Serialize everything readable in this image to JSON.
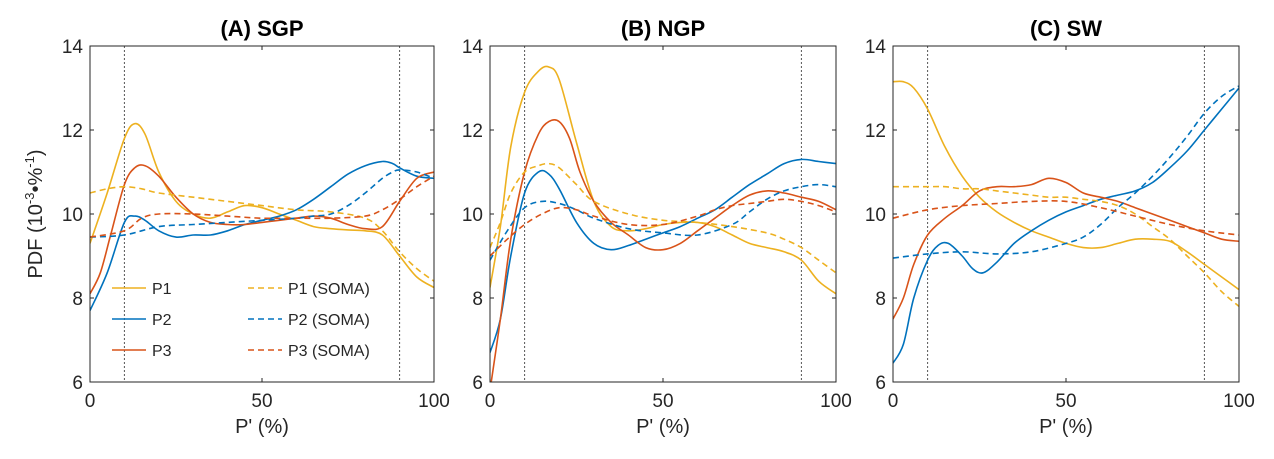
{
  "figure": {
    "ylabel_main": "PDF (10",
    "ylabel_exp1": "-3",
    "ylabel_mid": "•%",
    "ylabel_exp2": "-1",
    "ylabel_end": ")"
  },
  "colors": {
    "P1": "#EDB120",
    "P2": "#0072BD",
    "P3": "#D95319",
    "refline": "#555555"
  },
  "legend": [
    {
      "label": "P1",
      "series": "P1",
      "dashed": false
    },
    {
      "label": "P2",
      "series": "P2",
      "dashed": false
    },
    {
      "label": "P3",
      "series": "P3",
      "dashed": false
    },
    {
      "label": "P1 (SOMA)",
      "series": "P1",
      "dashed": true
    },
    {
      "label": "P2 (SOMA)",
      "series": "P2",
      "dashed": true
    },
    {
      "label": "P3 (SOMA)",
      "series": "P3",
      "dashed": true
    }
  ],
  "chart_data": [
    {
      "type": "line",
      "title": "(A) SGP",
      "xlabel": "P' (%)",
      "xlim": [
        0,
        100
      ],
      "ylim": [
        6,
        14
      ],
      "xticks": [
        0,
        50,
        100
      ],
      "yticks": [
        6,
        8,
        10,
        12,
        14
      ],
      "vlines": [
        10,
        90
      ],
      "series": [
        {
          "key": "P1",
          "dashed": false,
          "x": [
            0,
            5,
            10,
            13,
            16,
            20,
            25,
            30,
            35,
            40,
            45,
            50,
            55,
            60,
            65,
            70,
            75,
            80,
            85,
            90,
            95,
            100
          ],
          "y": [
            9.3,
            10.5,
            11.8,
            12.15,
            11.9,
            11.0,
            10.3,
            10.0,
            9.9,
            10.05,
            10.2,
            10.15,
            10.0,
            9.85,
            9.7,
            9.65,
            9.62,
            9.6,
            9.5,
            9.0,
            8.5,
            8.25
          ]
        },
        {
          "key": "P2",
          "dashed": false,
          "x": [
            0,
            5,
            10,
            13,
            16,
            20,
            25,
            30,
            35,
            40,
            45,
            50,
            55,
            60,
            65,
            70,
            75,
            80,
            85,
            88,
            90,
            95,
            100
          ],
          "y": [
            7.7,
            8.6,
            9.8,
            9.95,
            9.85,
            9.6,
            9.45,
            9.5,
            9.5,
            9.6,
            9.75,
            9.85,
            9.95,
            10.1,
            10.35,
            10.65,
            10.95,
            11.15,
            11.25,
            11.2,
            11.1,
            10.9,
            10.85
          ]
        },
        {
          "key": "P3",
          "dashed": false,
          "x": [
            0,
            3,
            6,
            10,
            13,
            16,
            20,
            25,
            30,
            35,
            40,
            45,
            50,
            55,
            60,
            65,
            70,
            75,
            80,
            85,
            90,
            95,
            100
          ],
          "y": [
            8.1,
            8.6,
            9.5,
            10.7,
            11.1,
            11.15,
            10.9,
            10.4,
            10.0,
            9.8,
            9.75,
            9.75,
            9.8,
            9.85,
            9.9,
            9.95,
            9.9,
            9.75,
            9.65,
            9.7,
            10.3,
            10.85,
            11.0
          ]
        },
        {
          "key": "P1",
          "dashed": true,
          "x": [
            0,
            5,
            10,
            15,
            20,
            30,
            40,
            50,
            60,
            70,
            80,
            85,
            90,
            95,
            100
          ],
          "y": [
            10.5,
            10.6,
            10.65,
            10.6,
            10.5,
            10.4,
            10.3,
            10.2,
            10.1,
            10.05,
            9.9,
            9.6,
            9.1,
            8.7,
            8.4
          ]
        },
        {
          "key": "P2",
          "dashed": true,
          "x": [
            0,
            10,
            20,
            30,
            40,
            50,
            60,
            65,
            70,
            75,
            80,
            85,
            88,
            90,
            95,
            100
          ],
          "y": [
            9.45,
            9.5,
            9.7,
            9.75,
            9.8,
            9.85,
            9.9,
            9.95,
            10.0,
            10.2,
            10.5,
            10.85,
            11.0,
            11.05,
            11.0,
            10.85
          ]
        },
        {
          "key": "P3",
          "dashed": true,
          "x": [
            0,
            10,
            15,
            20,
            30,
            40,
            50,
            60,
            70,
            80,
            85,
            90,
            95,
            100
          ],
          "y": [
            9.45,
            9.6,
            9.9,
            10.0,
            10.0,
            9.95,
            9.9,
            9.9,
            9.9,
            9.95,
            10.1,
            10.35,
            10.65,
            10.9
          ]
        }
      ]
    },
    {
      "type": "line",
      "title": "(B) NGP",
      "xlabel": "P' (%)",
      "xlim": [
        0,
        100
      ],
      "ylim": [
        6,
        14
      ],
      "xticks": [
        0,
        50,
        100
      ],
      "yticks": [
        6,
        8,
        10,
        12,
        14
      ],
      "vlines": [
        10,
        90
      ],
      "series": [
        {
          "key": "P1",
          "dashed": false,
          "x": [
            0,
            3,
            6,
            10,
            14,
            17,
            20,
            25,
            30,
            35,
            40,
            45,
            50,
            55,
            60,
            65,
            70,
            75,
            80,
            85,
            90,
            95,
            100
          ],
          "y": [
            8.25,
            9.7,
            11.6,
            12.9,
            13.4,
            13.5,
            13.2,
            11.7,
            10.3,
            9.7,
            9.6,
            9.65,
            9.75,
            9.8,
            9.8,
            9.7,
            9.5,
            9.3,
            9.2,
            9.1,
            8.9,
            8.4,
            8.1
          ]
        },
        {
          "key": "P2",
          "dashed": false,
          "x": [
            0,
            3,
            6,
            10,
            14,
            17,
            20,
            25,
            30,
            35,
            40,
            45,
            50,
            55,
            60,
            65,
            70,
            75,
            80,
            85,
            90,
            95,
            100
          ],
          "y": [
            6.7,
            7.5,
            9.0,
            10.5,
            11.0,
            10.95,
            10.6,
            9.8,
            9.3,
            9.15,
            9.25,
            9.4,
            9.55,
            9.7,
            9.9,
            10.1,
            10.4,
            10.7,
            10.95,
            11.2,
            11.3,
            11.25,
            11.2
          ]
        },
        {
          "key": "P3",
          "dashed": false,
          "x": [
            0,
            3,
            6,
            10,
            14,
            17,
            20,
            23,
            26,
            30,
            35,
            40,
            45,
            50,
            55,
            60,
            65,
            70,
            75,
            80,
            85,
            90,
            95,
            100
          ],
          "y": [
            5.8,
            7.5,
            9.4,
            11.0,
            11.9,
            12.2,
            12.2,
            11.8,
            11.0,
            10.3,
            9.8,
            9.5,
            9.2,
            9.15,
            9.3,
            9.6,
            9.9,
            10.2,
            10.45,
            10.55,
            10.5,
            10.4,
            10.3,
            10.1
          ]
        },
        {
          "key": "P1",
          "dashed": true,
          "x": [
            0,
            3,
            6,
            10,
            14,
            17,
            20,
            25,
            30,
            40,
            50,
            60,
            70,
            80,
            85,
            90,
            95,
            100
          ],
          "y": [
            9.2,
            9.8,
            10.5,
            11.0,
            11.15,
            11.2,
            11.1,
            10.7,
            10.3,
            10.0,
            9.85,
            9.8,
            9.7,
            9.55,
            9.4,
            9.2,
            8.9,
            8.6
          ]
        },
        {
          "key": "P2",
          "dashed": true,
          "x": [
            0,
            5,
            10,
            15,
            20,
            25,
            30,
            40,
            50,
            60,
            70,
            75,
            80,
            85,
            90,
            95,
            100
          ],
          "y": [
            8.9,
            9.6,
            10.15,
            10.3,
            10.25,
            10.1,
            9.9,
            9.65,
            9.55,
            9.5,
            9.75,
            10.05,
            10.35,
            10.55,
            10.65,
            10.7,
            10.65
          ]
        },
        {
          "key": "P3",
          "dashed": true,
          "x": [
            0,
            5,
            10,
            15,
            20,
            25,
            30,
            40,
            50,
            60,
            65,
            70,
            75,
            80,
            85,
            90,
            95,
            100
          ],
          "y": [
            9.0,
            9.4,
            9.75,
            10.0,
            10.15,
            10.1,
            9.95,
            9.75,
            9.75,
            9.95,
            10.1,
            10.2,
            10.25,
            10.3,
            10.35,
            10.3,
            10.2,
            10.05
          ]
        }
      ]
    },
    {
      "type": "line",
      "title": "(C) SW",
      "xlabel": "P' (%)",
      "xlim": [
        0,
        100
      ],
      "ylim": [
        6,
        14
      ],
      "xticks": [
        0,
        50,
        100
      ],
      "yticks": [
        6,
        8,
        10,
        12,
        14
      ],
      "vlines": [
        10,
        90
      ],
      "series": [
        {
          "key": "P1",
          "dashed": false,
          "x": [
            0,
            3,
            6,
            10,
            15,
            20,
            25,
            30,
            35,
            40,
            45,
            50,
            55,
            60,
            65,
            70,
            75,
            80,
            85,
            90,
            95,
            100
          ],
          "y": [
            13.15,
            13.15,
            13.0,
            12.5,
            11.6,
            10.9,
            10.4,
            10.05,
            9.8,
            9.6,
            9.45,
            9.3,
            9.2,
            9.2,
            9.3,
            9.4,
            9.4,
            9.35,
            9.1,
            8.8,
            8.5,
            8.2
          ]
        },
        {
          "key": "P2",
          "dashed": false,
          "x": [
            0,
            3,
            6,
            10,
            13,
            16,
            20,
            23,
            26,
            30,
            35,
            40,
            45,
            50,
            55,
            60,
            65,
            70,
            75,
            80,
            85,
            90,
            95,
            100
          ],
          "y": [
            6.45,
            6.9,
            8.0,
            8.9,
            9.25,
            9.3,
            9.0,
            8.7,
            8.6,
            8.85,
            9.3,
            9.6,
            9.85,
            10.05,
            10.2,
            10.35,
            10.45,
            10.55,
            10.75,
            11.1,
            11.5,
            12.0,
            12.5,
            13.0
          ]
        },
        {
          "key": "P3",
          "dashed": false,
          "x": [
            0,
            3,
            6,
            10,
            15,
            20,
            25,
            30,
            35,
            40,
            45,
            50,
            55,
            60,
            65,
            70,
            75,
            80,
            85,
            90,
            95,
            100
          ],
          "y": [
            7.5,
            8.0,
            8.8,
            9.5,
            9.9,
            10.2,
            10.55,
            10.65,
            10.65,
            10.7,
            10.85,
            10.75,
            10.5,
            10.4,
            10.3,
            10.15,
            10.0,
            9.85,
            9.7,
            9.55,
            9.4,
            9.35
          ]
        },
        {
          "key": "P1",
          "dashed": true,
          "x": [
            0,
            5,
            10,
            15,
            20,
            25,
            30,
            35,
            40,
            45,
            50,
            55,
            60,
            65,
            70,
            75,
            80,
            85,
            90,
            95,
            100
          ],
          "y": [
            10.65,
            10.65,
            10.65,
            10.65,
            10.6,
            10.6,
            10.55,
            10.5,
            10.45,
            10.4,
            10.4,
            10.35,
            10.3,
            10.2,
            10.0,
            9.7,
            9.4,
            9.0,
            8.6,
            8.15,
            7.8
          ]
        },
        {
          "key": "P2",
          "dashed": true,
          "x": [
            0,
            10,
            20,
            30,
            40,
            50,
            55,
            60,
            65,
            70,
            75,
            80,
            85,
            90,
            95,
            100
          ],
          "y": [
            8.95,
            9.05,
            9.1,
            9.05,
            9.1,
            9.3,
            9.45,
            9.75,
            10.15,
            10.5,
            10.9,
            11.35,
            11.85,
            12.4,
            12.8,
            13.05
          ]
        },
        {
          "key": "P3",
          "dashed": true,
          "x": [
            0,
            10,
            20,
            30,
            40,
            50,
            60,
            70,
            80,
            90,
            100
          ],
          "y": [
            9.9,
            10.1,
            10.2,
            10.25,
            10.3,
            10.3,
            10.15,
            9.95,
            9.75,
            9.6,
            9.5
          ]
        }
      ]
    }
  ]
}
